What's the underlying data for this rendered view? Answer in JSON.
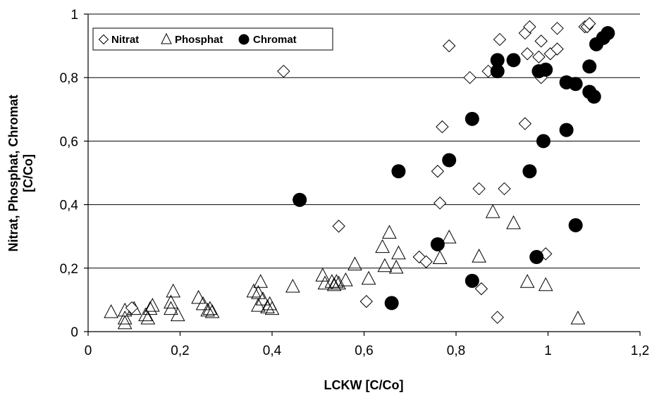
{
  "chart_data": {
    "type": "scatter",
    "title": "",
    "xlabel": "LCKW [C/Co]",
    "ylabel_line1": "Nitrat, Phosphat, Chromat",
    "ylabel_line2": "[C/Co]",
    "xlim": [
      0,
      1.2
    ],
    "ylim": [
      0,
      1
    ],
    "x_ticks": [
      0,
      0.2,
      0.4,
      0.6,
      0.8,
      1,
      1.2
    ],
    "x_tick_labels": [
      "0",
      "0,2",
      "0,4",
      "0,6",
      "0,8",
      "1",
      "1,2"
    ],
    "y_ticks": [
      0,
      0.2,
      0.4,
      0.6,
      0.8,
      1
    ],
    "y_tick_labels": [
      "0",
      "0,2",
      "0,4",
      "0,6",
      "0,8",
      "1"
    ],
    "grid": "horizontal",
    "legend_position": "top-left",
    "series": [
      {
        "name": "Nitrat",
        "marker": "diamond-open",
        "color": "#000000",
        "points": [
          [
            0.095,
            0.075
          ],
          [
            0.425,
            0.82
          ],
          [
            0.545,
            0.332
          ],
          [
            0.605,
            0.095
          ],
          [
            0.72,
            0.235
          ],
          [
            0.735,
            0.22
          ],
          [
            0.76,
            0.505
          ],
          [
            0.765,
            0.405
          ],
          [
            0.77,
            0.645
          ],
          [
            0.785,
            0.9
          ],
          [
            0.83,
            0.8
          ],
          [
            0.85,
            0.45
          ],
          [
            0.855,
            0.135
          ],
          [
            0.87,
            0.82
          ],
          [
            0.89,
            0.045
          ],
          [
            0.895,
            0.92
          ],
          [
            0.905,
            0.45
          ],
          [
            0.95,
            0.655
          ],
          [
            0.95,
            0.94
          ],
          [
            0.955,
            0.875
          ],
          [
            0.96,
            0.96
          ],
          [
            0.98,
            0.865
          ],
          [
            0.985,
            0.8
          ],
          [
            0.985,
            0.915
          ],
          [
            0.995,
            0.245
          ],
          [
            1.005,
            0.875
          ],
          [
            1.02,
            0.89
          ],
          [
            1.02,
            0.955
          ],
          [
            1.08,
            0.96
          ],
          [
            1.085,
            0.96
          ],
          [
            1.09,
            0.97
          ]
        ]
      },
      {
        "name": "Phosphat",
        "marker": "triangle-open",
        "color": "#000000",
        "points": [
          [
            0.05,
            0.06
          ],
          [
            0.08,
            0.065
          ],
          [
            0.08,
            0.04
          ],
          [
            0.08,
            0.025
          ],
          [
            0.1,
            0.07
          ],
          [
            0.125,
            0.05
          ],
          [
            0.13,
            0.04
          ],
          [
            0.135,
            0.07
          ],
          [
            0.14,
            0.08
          ],
          [
            0.18,
            0.07
          ],
          [
            0.18,
            0.09
          ],
          [
            0.185,
            0.125
          ],
          [
            0.195,
            0.05
          ],
          [
            0.24,
            0.105
          ],
          [
            0.25,
            0.085
          ],
          [
            0.26,
            0.065
          ],
          [
            0.265,
            0.07
          ],
          [
            0.27,
            0.06
          ],
          [
            0.36,
            0.125
          ],
          [
            0.37,
            0.12
          ],
          [
            0.37,
            0.08
          ],
          [
            0.375,
            0.155
          ],
          [
            0.38,
            0.1
          ],
          [
            0.39,
            0.075
          ],
          [
            0.395,
            0.085
          ],
          [
            0.4,
            0.07
          ],
          [
            0.445,
            0.14
          ],
          [
            0.51,
            0.175
          ],
          [
            0.515,
            0.15
          ],
          [
            0.53,
            0.155
          ],
          [
            0.535,
            0.145
          ],
          [
            0.54,
            0.155
          ],
          [
            0.545,
            0.15
          ],
          [
            0.56,
            0.16
          ],
          [
            0.58,
            0.21
          ],
          [
            0.61,
            0.165
          ],
          [
            0.64,
            0.265
          ],
          [
            0.645,
            0.205
          ],
          [
            0.655,
            0.31
          ],
          [
            0.67,
            0.2
          ],
          [
            0.675,
            0.245
          ],
          [
            0.765,
            0.23
          ],
          [
            0.785,
            0.295
          ],
          [
            0.85,
            0.235
          ],
          [
            0.88,
            0.375
          ],
          [
            0.925,
            0.34
          ],
          [
            0.955,
            0.155
          ],
          [
            0.995,
            0.145
          ],
          [
            1.065,
            0.04
          ]
        ]
      },
      {
        "name": "Chromat",
        "marker": "circle-filled",
        "color": "#000000",
        "points": [
          [
            0.46,
            0.415
          ],
          [
            0.66,
            0.09
          ],
          [
            0.675,
            0.505
          ],
          [
            0.76,
            0.275
          ],
          [
            0.785,
            0.54
          ],
          [
            0.835,
            0.67
          ],
          [
            0.835,
            0.16
          ],
          [
            0.89,
            0.855
          ],
          [
            0.89,
            0.82
          ],
          [
            0.925,
            0.855
          ],
          [
            0.96,
            0.505
          ],
          [
            0.975,
            0.235
          ],
          [
            0.98,
            0.82
          ],
          [
            0.99,
            0.6
          ],
          [
            0.995,
            0.825
          ],
          [
            1.04,
            0.785
          ],
          [
            1.04,
            0.635
          ],
          [
            1.06,
            0.78
          ],
          [
            1.06,
            0.335
          ],
          [
            1.09,
            0.835
          ],
          [
            1.09,
            0.755
          ],
          [
            1.1,
            0.74
          ],
          [
            1.105,
            0.905
          ],
          [
            1.12,
            0.925
          ],
          [
            1.13,
            0.94
          ]
        ]
      }
    ]
  }
}
